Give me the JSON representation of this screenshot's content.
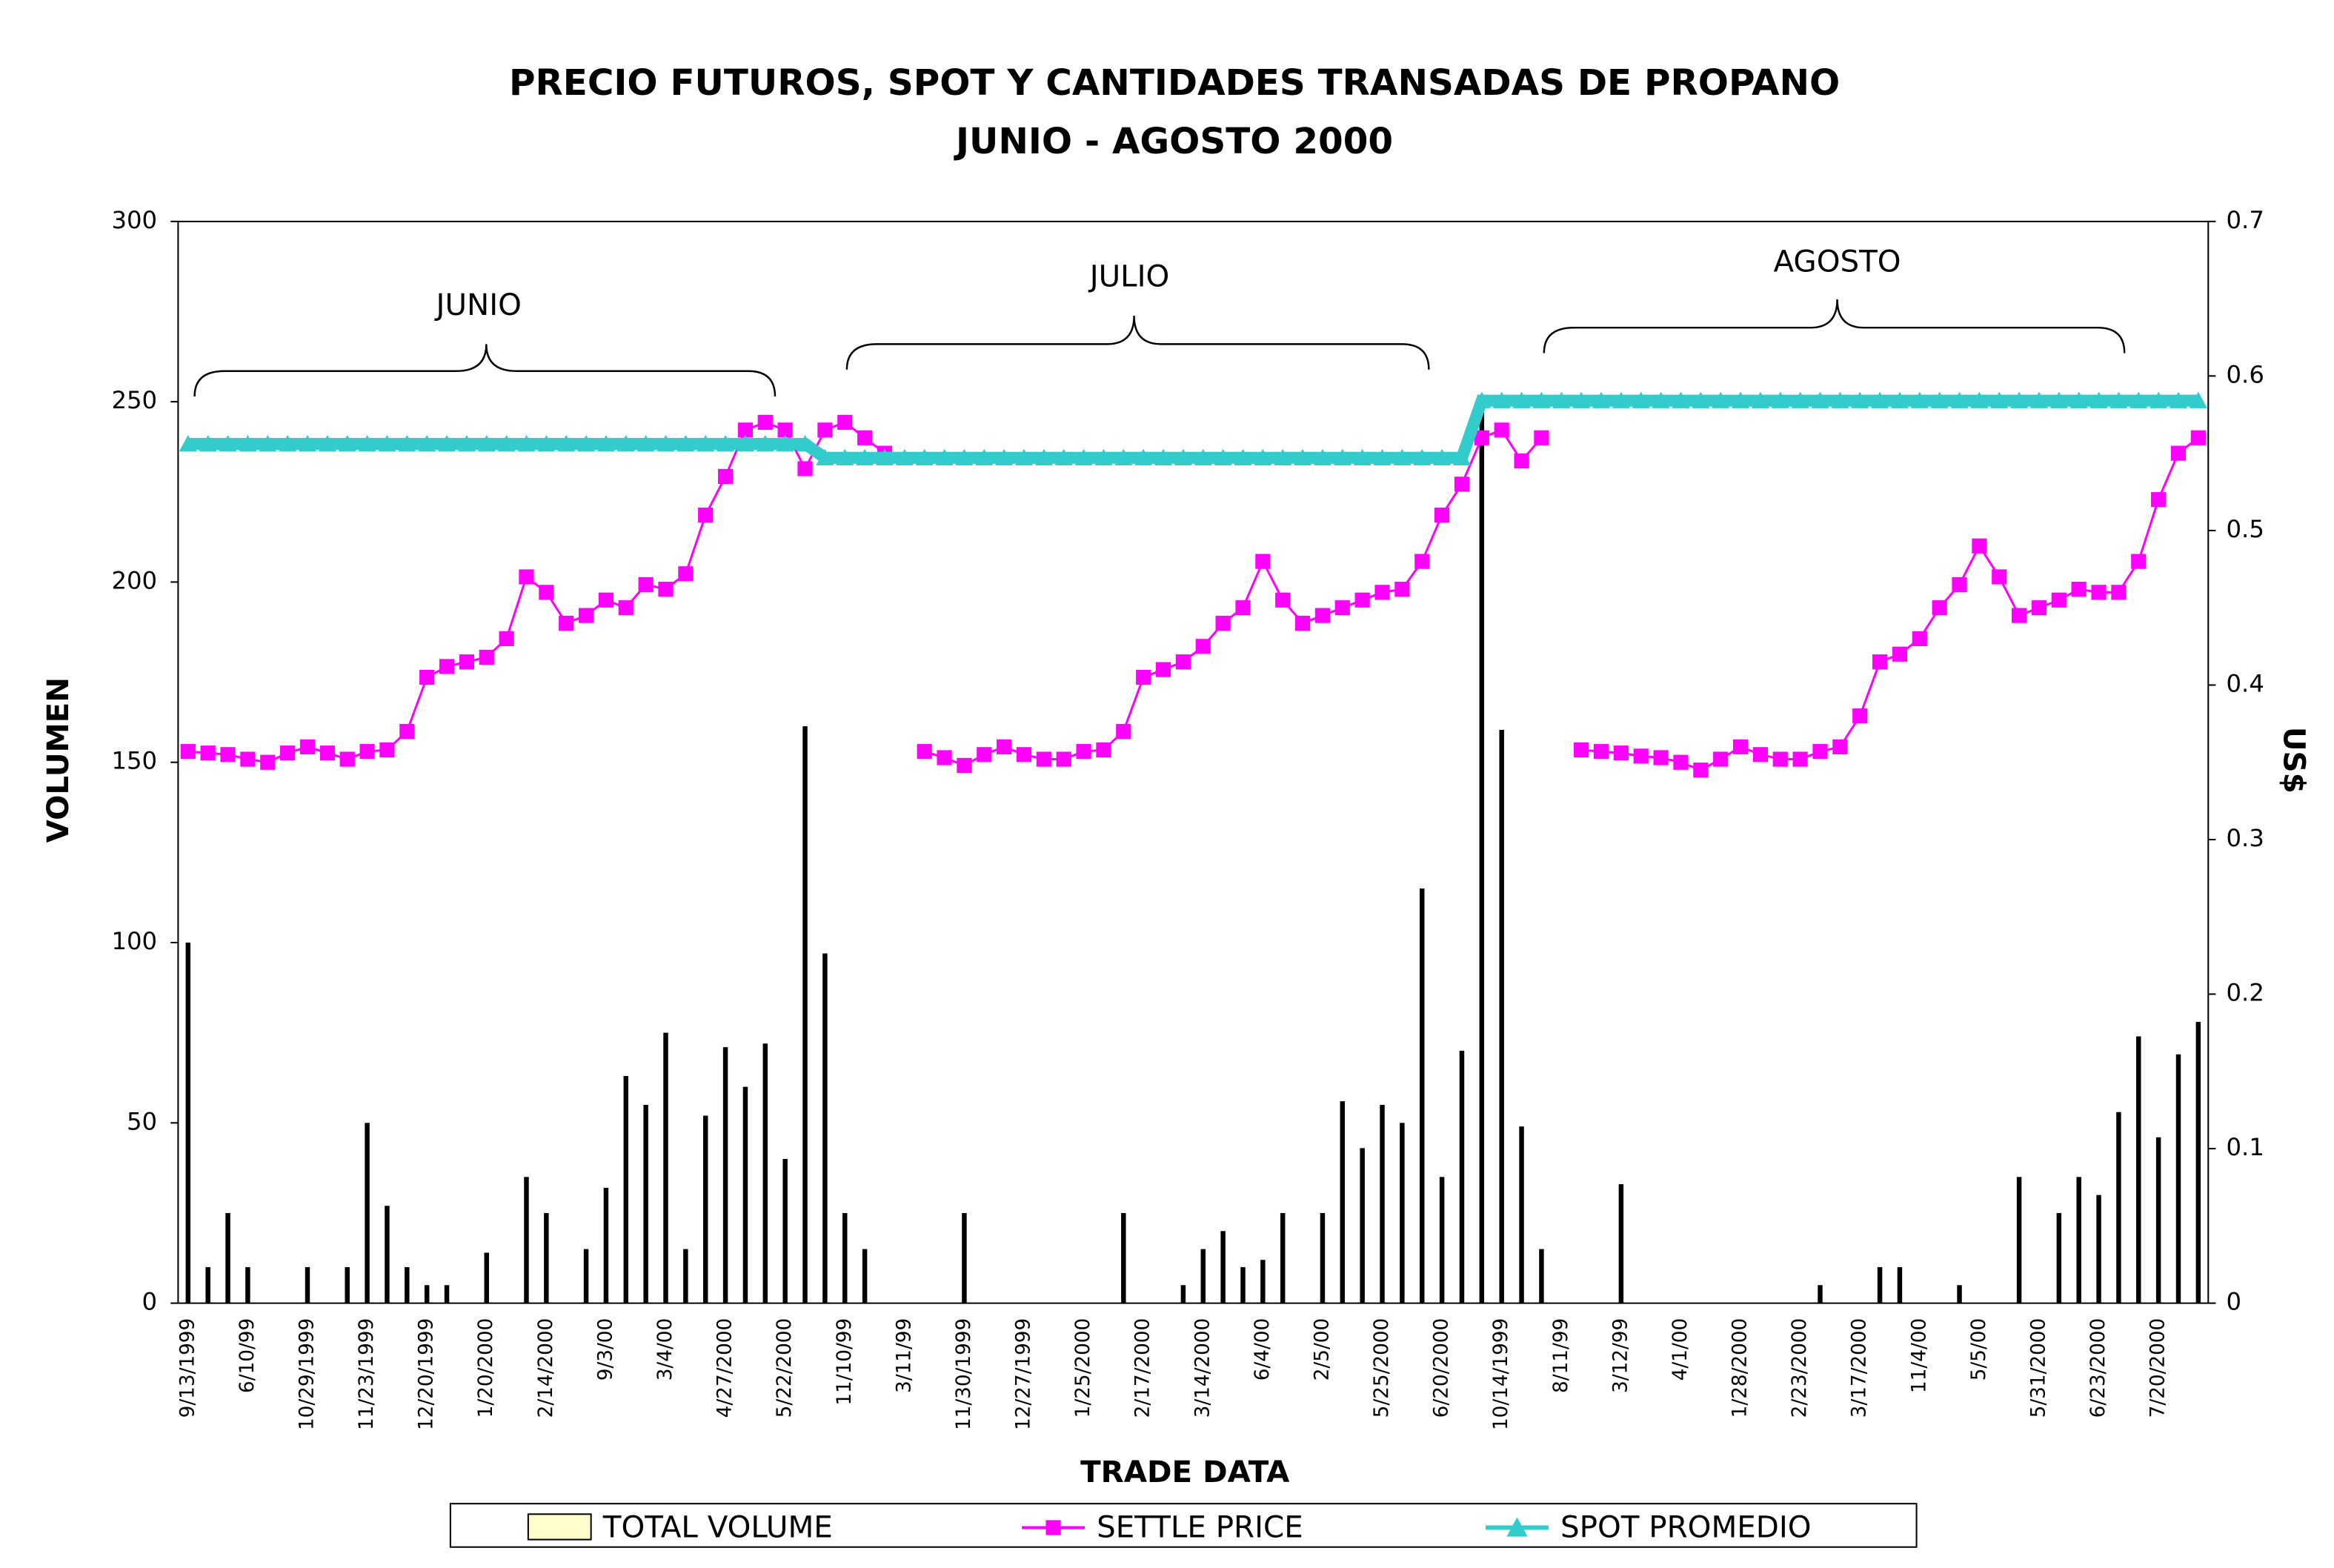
{
  "chart_data": {
    "type": "bar",
    "title": "PRECIO FUTUROS, SPOT Y CANTIDADES TRANSADAS DE PROPANO",
    "subtitle": "JUNIO - AGOSTO 2000",
    "x_label": "TRADE DATA",
    "y_label": "VOLUMEN",
    "y2_label": "US$",
    "annotations": [
      "JUNIO",
      "JULIO",
      "AGOSTO"
    ],
    "categories": [
      "9/13/1999",
      null,
      null,
      "6/10/99",
      null,
      null,
      "10/29/1999",
      null,
      null,
      "11/23/1999",
      null,
      null,
      "12/20/1999",
      null,
      null,
      "1/20/2000",
      null,
      null,
      "2/14/2000",
      null,
      null,
      "9/3/00",
      null,
      null,
      "3/4/00",
      null,
      null,
      "4/27/2000",
      null,
      null,
      "5/22/2000",
      null,
      null,
      "11/10/99",
      null,
      null,
      "3/11/99",
      null,
      null,
      "11/30/1999",
      null,
      null,
      "12/27/1999",
      null,
      null,
      "1/25/2000",
      null,
      null,
      "2/17/2000",
      null,
      null,
      "3/14/2000",
      null,
      null,
      "6/4/00",
      null,
      null,
      "2/5/00",
      null,
      null,
      "5/25/2000",
      null,
      null,
      "6/20/2000",
      null,
      null,
      "10/14/1999",
      null,
      null,
      "8/11/99",
      null,
      null,
      "3/12/99",
      null,
      null,
      "4/1/00",
      null,
      null,
      "1/28/2000",
      null,
      null,
      "2/23/2000",
      null,
      null,
      "3/17/2000",
      null,
      null,
      "11/4/00",
      null,
      null,
      "5/5/00",
      null,
      null,
      "5/31/2000",
      null,
      null,
      "6/23/2000",
      null,
      null,
      "7/20/2000",
      null,
      null
    ],
    "series": [
      {
        "name": "TOTAL VOLUME",
        "type": "bar",
        "color": "#000000",
        "legend_color": "#ffffcc",
        "values": [
          100,
          10,
          25,
          10,
          0,
          0,
          10,
          0,
          10,
          50,
          27,
          10,
          5,
          5,
          0,
          14,
          0,
          35,
          25,
          0,
          15,
          32,
          63,
          55,
          75,
          15,
          52,
          71,
          60,
          72,
          40,
          160,
          97,
          25,
          15,
          0,
          0,
          0,
          0,
          25,
          0,
          0,
          0,
          0,
          0,
          0,
          0,
          25,
          0,
          0,
          5,
          15,
          20,
          10,
          12,
          25,
          0,
          25,
          56,
          43,
          55,
          50,
          115,
          35,
          70,
          251,
          159,
          49,
          15,
          0,
          0,
          0,
          33,
          0,
          0,
          0,
          0,
          0,
          0,
          0,
          0,
          0,
          5,
          0,
          0,
          10,
          10,
          0,
          0,
          5,
          0,
          0,
          35,
          0,
          25,
          35,
          30,
          53,
          74,
          46,
          69,
          78
        ]
      },
      {
        "name": "SETTLE PRICE",
        "type": "line",
        "axis": "y2",
        "marker": "square",
        "color": "#ff00ff",
        "values": [
          0.357,
          0.356,
          0.355,
          0.352,
          0.35,
          0.356,
          0.36,
          0.356,
          0.352,
          0.357,
          0.358,
          0.37,
          0.405,
          0.412,
          0.415,
          0.418,
          0.43,
          0.47,
          0.46,
          0.44,
          0.445,
          0.455,
          0.45,
          0.465,
          0.462,
          0.472,
          0.51,
          0.535,
          0.565,
          0.57,
          0.565,
          0.54,
          0.565,
          0.57,
          0.56,
          0.55,
          null,
          0.357,
          0.353,
          0.348,
          0.355,
          0.36,
          0.355,
          0.352,
          0.352,
          0.357,
          0.358,
          0.37,
          0.405,
          0.41,
          0.415,
          0.425,
          0.44,
          0.45,
          0.48,
          0.455,
          0.44,
          0.445,
          0.45,
          0.455,
          0.46,
          0.462,
          0.48,
          0.51,
          0.53,
          0.56,
          0.565,
          0.545,
          0.56,
          null,
          0.358,
          0.357,
          0.356,
          0.354,
          0.353,
          0.35,
          0.345,
          0.352,
          0.36,
          0.355,
          0.352,
          0.352,
          0.357,
          0.36,
          0.38,
          0.415,
          0.42,
          0.43,
          0.45,
          0.465,
          0.49,
          0.47,
          0.445,
          0.45,
          0.455,
          0.462,
          0.46,
          0.46,
          0.48,
          0.52,
          0.55,
          0.56
        ]
      },
      {
        "name": "SPOT PROMEDIO",
        "type": "line",
        "axis": "y2",
        "marker": "triangle",
        "color": "#33cccc",
        "values": [
          0.556,
          0.556,
          0.556,
          0.556,
          0.556,
          0.556,
          0.556,
          0.556,
          0.556,
          0.556,
          0.556,
          0.556,
          0.556,
          0.556,
          0.556,
          0.556,
          0.556,
          0.556,
          0.556,
          0.556,
          0.556,
          0.556,
          0.556,
          0.556,
          0.556,
          0.556,
          0.556,
          0.556,
          0.556,
          0.556,
          0.556,
          0.556,
          0.547,
          0.547,
          0.547,
          0.547,
          0.547,
          0.547,
          0.547,
          0.547,
          0.547,
          0.547,
          0.547,
          0.547,
          0.547,
          0.547,
          0.547,
          0.547,
          0.547,
          0.547,
          0.547,
          0.547,
          0.547,
          0.547,
          0.547,
          0.547,
          0.547,
          0.547,
          0.547,
          0.547,
          0.547,
          0.547,
          0.547,
          0.547,
          0.547,
          0.584,
          0.584,
          0.584,
          0.584,
          0.584,
          0.584,
          0.584,
          0.584,
          0.584,
          0.584,
          0.584,
          0.584,
          0.584,
          0.584,
          0.584,
          0.584,
          0.584,
          0.584,
          0.584,
          0.584,
          0.584,
          0.584,
          0.584,
          0.584,
          0.584,
          0.584,
          0.584,
          0.584,
          0.584,
          0.584,
          0.584,
          0.584,
          0.584,
          0.584,
          0.584,
          0.584,
          0.584
        ]
      }
    ],
    "ylim": [
      0,
      300
    ],
    "yticks": [
      0,
      50,
      100,
      150,
      200,
      250,
      300
    ],
    "y2lim": [
      0,
      0.7
    ],
    "y2ticks": [
      0,
      0.1,
      0.2,
      0.3,
      0.4,
      0.5,
      0.6,
      0.7
    ],
    "grid": false
  }
}
